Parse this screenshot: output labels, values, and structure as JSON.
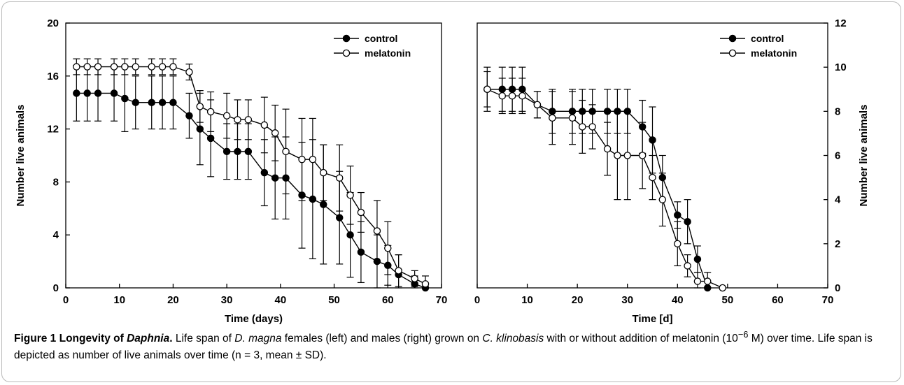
{
  "caption": {
    "label": "Figure 1",
    "title_pre": "Longevity of ",
    "title_italic": "Daphnia",
    "title_post": ".",
    "t1": "Life span of ",
    "i1": "D. magna",
    "t2": " females (left) and males (right) grown on ",
    "i2": "C. klinobasis",
    "t3": " with or without addition of melatonin (10",
    "sup": "−6",
    "t4": " M) over time. Life span is depicted as number of live animals over time (n = 3, mean ± SD)."
  },
  "chart_data": [
    {
      "type": "line",
      "panel": "left",
      "xlabel": "Time (days)",
      "ylabel": "Number live animals",
      "xlim": [
        0,
        70
      ],
      "ylim": [
        0,
        20
      ],
      "xticks": [
        0,
        10,
        20,
        30,
        40,
        50,
        60,
        70
      ],
      "yticks": [
        0,
        4,
        8,
        12,
        16,
        20
      ],
      "y_axis_side": "left",
      "legend": "top-right",
      "series": [
        {
          "name": "control",
          "marker": "filled",
          "color": "#000000",
          "x": [
            2,
            4,
            6,
            9,
            11,
            13,
            16,
            18,
            20,
            23,
            25,
            27,
            30,
            32,
            34,
            37,
            39,
            41,
            44,
            46,
            48,
            51,
            53,
            55,
            58,
            60,
            62,
            65,
            67
          ],
          "y": [
            14.7,
            14.7,
            14.7,
            14.7,
            14.3,
            14,
            14,
            14,
            14,
            13,
            12,
            11.3,
            10.3,
            10.3,
            10.3,
            8.7,
            8.3,
            8.3,
            7,
            6.7,
            6.3,
            5.3,
            4,
            2.7,
            2,
            1.7,
            1,
            0.3,
            0
          ],
          "sd": [
            2.1,
            2.1,
            2.1,
            2.1,
            2.5,
            2,
            2,
            2,
            2,
            1.7,
            2.7,
            2.9,
            2.1,
            2.1,
            2.1,
            2.5,
            3.1,
            3.1,
            4,
            4.5,
            4.5,
            3.5,
            3.2,
            2.3,
            2,
            1.5,
            1.5,
            0.6,
            0
          ]
        },
        {
          "name": "melatonin",
          "marker": "open",
          "color": "#000000",
          "x": [
            2,
            4,
            6,
            9,
            11,
            13,
            16,
            18,
            20,
            23,
            25,
            27,
            30,
            32,
            34,
            37,
            39,
            41,
            44,
            46,
            48,
            51,
            53,
            55,
            58,
            60,
            62,
            65,
            67
          ],
          "y": [
            16.7,
            16.7,
            16.7,
            16.7,
            16.7,
            16.7,
            16.7,
            16.7,
            16.7,
            16.3,
            13.7,
            13.3,
            13,
            12.7,
            12.7,
            12.3,
            11.7,
            10.3,
            9.7,
            9.7,
            8.7,
            8.3,
            7,
            5.7,
            4.3,
            3,
            1.3,
            0.7,
            0.3
          ],
          "sd": [
            0.6,
            0.6,
            0.6,
            0.6,
            0.6,
            0.6,
            0.6,
            0.6,
            0.6,
            0.6,
            1.2,
            1.5,
            1.7,
            1.5,
            1.5,
            2.1,
            2.1,
            3.2,
            3.1,
            3.1,
            2.1,
            2.5,
            2.2,
            1.5,
            2.3,
            2,
            1.2,
            0.6,
            0.6
          ]
        }
      ]
    },
    {
      "type": "line",
      "panel": "right",
      "xlabel": "Time [d]",
      "ylabel": "Number live animals",
      "xlim": [
        0,
        70
      ],
      "ylim": [
        0,
        12
      ],
      "xticks": [
        0,
        10,
        20,
        30,
        40,
        50,
        60,
        70
      ],
      "yticks": [
        0,
        2,
        4,
        6,
        8,
        10,
        12
      ],
      "y_axis_side": "right",
      "legend": "top-right",
      "series": [
        {
          "name": "control",
          "marker": "filled",
          "color": "#000000",
          "x": [
            2,
            5,
            7,
            9,
            12,
            15,
            19,
            21,
            23,
            26,
            28,
            30,
            33,
            35,
            37,
            40,
            42,
            44,
            46
          ],
          "y": [
            9,
            9,
            9,
            9,
            8.3,
            8,
            8,
            8,
            8,
            8,
            8,
            8,
            7.3,
            6.7,
            5,
            3.3,
            3,
            1.3,
            0
          ],
          "sd": [
            1,
            1,
            1,
            1,
            0.6,
            1,
            1,
            1,
            1,
            1,
            1,
            1,
            1.2,
            1.5,
            1,
            0.6,
            1,
            0.6,
            0
          ]
        },
        {
          "name": "melatonin",
          "marker": "open",
          "color": "#000000",
          "x": [
            2,
            5,
            7,
            9,
            12,
            15,
            19,
            21,
            23,
            26,
            28,
            30,
            33,
            35,
            37,
            40,
            42,
            44,
            46,
            49
          ],
          "y": [
            9,
            8.7,
            8.7,
            8.7,
            8.3,
            7.7,
            7.7,
            7.3,
            7.3,
            6.3,
            6,
            6,
            6,
            5,
            4,
            2,
            1,
            0.3,
            0.3,
            0
          ],
          "sd": [
            0.8,
            0.8,
            0.8,
            0.8,
            0.6,
            1.2,
            1.2,
            1.2,
            1,
            1.2,
            2,
            2,
            1.5,
            1,
            1.2,
            1,
            0.5,
            0.4,
            0.4,
            0
          ]
        }
      ]
    }
  ]
}
